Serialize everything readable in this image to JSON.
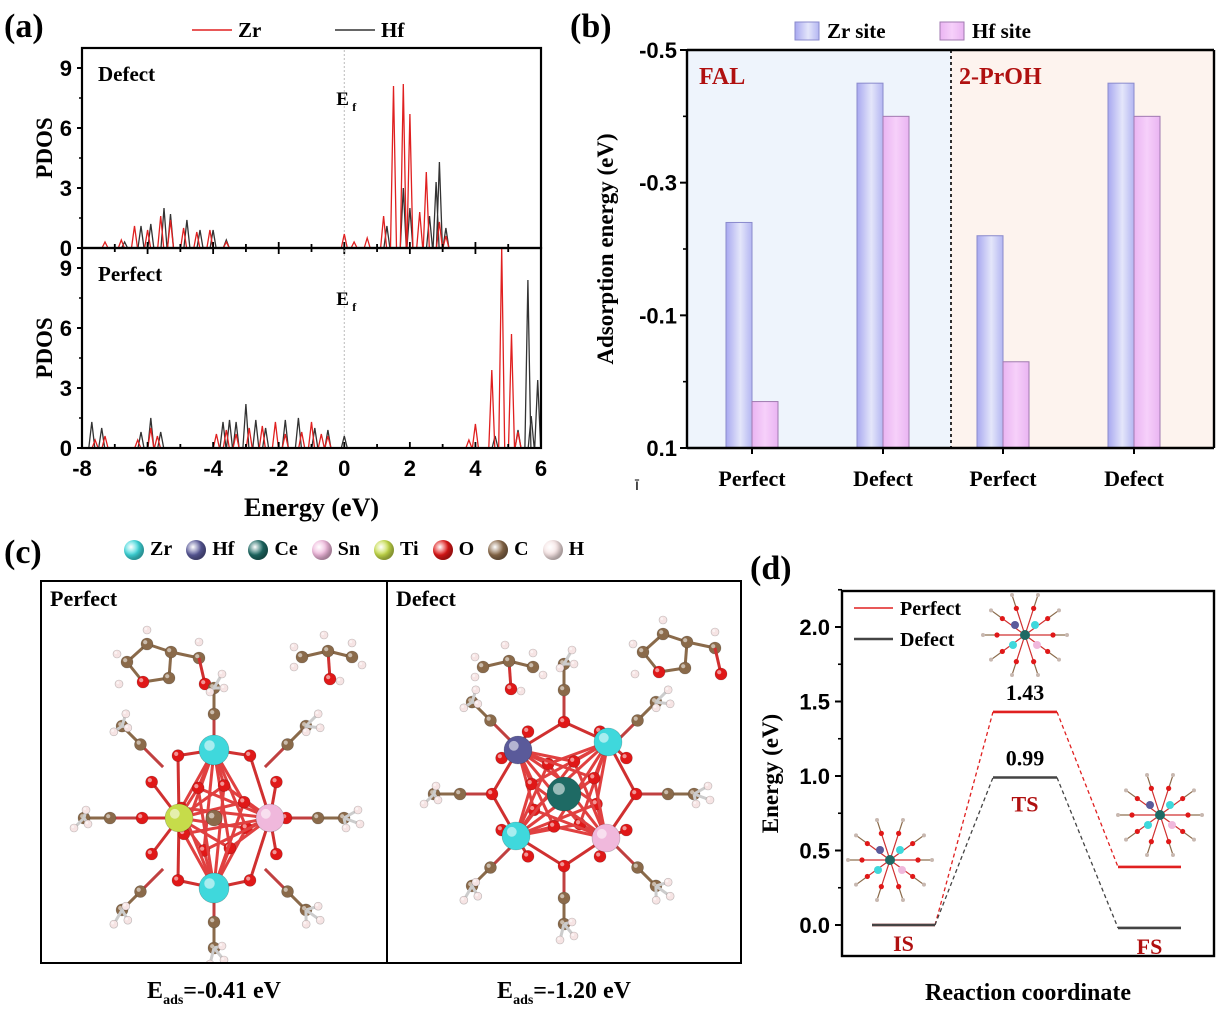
{
  "panels": {
    "a": {
      "label": "(a)"
    },
    "b": {
      "label": "(b)"
    },
    "c": {
      "label": "(c)"
    },
    "d": {
      "label": "(d)"
    }
  },
  "colors": {
    "zr_line": "#e02020",
    "hf_line": "#333333",
    "zr_site_bar": "#c8c8f8",
    "hf_site_bar": "#f2c0f6",
    "fal_bg": "#eef4fc",
    "proh_bg": "#fdf3ee",
    "group_label": "#b01010",
    "perfect_line": "#e02020",
    "defect_line": "#444444"
  },
  "structures": {
    "legend": [
      {
        "symbol": "Zr",
        "color": "#3fd8dc"
      },
      {
        "symbol": "Hf",
        "color": "#5a5a9a"
      },
      {
        "symbol": "Ce",
        "color": "#1e6a64"
      },
      {
        "symbol": "Sn",
        "color": "#f0b8dc"
      },
      {
        "symbol": "Ti",
        "color": "#c6dc4a"
      },
      {
        "symbol": "O",
        "color": "#e01818"
      },
      {
        "symbol": "C",
        "color": "#8a6a4a"
      },
      {
        "symbol": "H",
        "color": "#f6e4e4"
      }
    ],
    "perfect": {
      "title": "Perfect",
      "caption_main": "E",
      "caption_sub": "ads",
      "caption_value": "=-0.41 eV"
    },
    "defect": {
      "title": "Defect",
      "caption_main": "E",
      "caption_sub": "ads",
      "caption_value": "=-1.20 eV"
    }
  },
  "chart_data": [
    {
      "id": "a",
      "type": "line",
      "title": "",
      "xlabel": "Energy (eV)",
      "ylabel": "PDOS",
      "xlim": [
        -8,
        6
      ],
      "x_ticks": [
        "-8",
        "-6",
        "-4",
        "-2",
        "0",
        "2",
        "4",
        "6"
      ],
      "legend": [
        {
          "name": "Zr",
          "color": "#e02020"
        },
        {
          "name": "Hf",
          "color": "#333333"
        }
      ],
      "legend_position": "top",
      "fermi_label": "E",
      "fermi_sub": "f",
      "fermi_x": 0,
      "subplots": [
        {
          "name": "Defect",
          "ylim": [
            0,
            10
          ],
          "y_ticks": [
            "0",
            "3",
            "6",
            "9"
          ],
          "series": [
            {
              "name": "Zr",
              "peaks": [
                [
                  -7.3,
                  0.3
                ],
                [
                  -6.8,
                  0.4
                ],
                [
                  -6.4,
                  1.1
                ],
                [
                  -6.0,
                  0.9
                ],
                [
                  -5.6,
                  1.6
                ],
                [
                  -5.3,
                  1.4
                ],
                [
                  -4.9,
                  1.0
                ],
                [
                  -4.5,
                  0.8
                ],
                [
                  -4.1,
                  0.9
                ],
                [
                  -3.6,
                  0.3
                ],
                [
                  0.0,
                  0.7
                ],
                [
                  0.3,
                  0.3
                ],
                [
                  0.7,
                  0.5
                ],
                [
                  1.2,
                  1.6
                ],
                [
                  1.5,
                  8.1
                ],
                [
                  1.8,
                  8.2
                ],
                [
                  2.0,
                  6.7
                ],
                [
                  2.3,
                  1.8
                ],
                [
                  2.5,
                  3.8
                ],
                [
                  2.9,
                  1.3
                ],
                [
                  3.1,
                  0.6
                ]
              ]
            },
            {
              "name": "Hf",
              "peaks": [
                [
                  -6.7,
                  0.3
                ],
                [
                  -6.2,
                  1.1
                ],
                [
                  -5.9,
                  1.2
                ],
                [
                  -5.5,
                  2.0
                ],
                [
                  -5.3,
                  1.7
                ],
                [
                  -4.8,
                  1.4
                ],
                [
                  -4.4,
                  0.9
                ],
                [
                  -4.0,
                  0.9
                ],
                [
                  -3.6,
                  0.4
                ],
                [
                  1.3,
                  1.1
                ],
                [
                  1.8,
                  3.0
                ],
                [
                  2.0,
                  2.0
                ],
                [
                  2.6,
                  1.6
                ],
                [
                  2.8,
                  3.3
                ],
                [
                  2.9,
                  4.3
                ],
                [
                  3.1,
                  1.0
                ]
              ]
            }
          ]
        },
        {
          "name": "Perfect",
          "ylim": [
            0,
            10
          ],
          "y_ticks": [
            "0",
            "3",
            "6",
            "9"
          ],
          "series": [
            {
              "name": "Zr",
              "peaks": [
                [
                  -7.6,
                  0.4
                ],
                [
                  -7.3,
                  0.6
                ],
                [
                  -6.3,
                  0.4
                ],
                [
                  -5.9,
                  1.0
                ],
                [
                  -5.7,
                  0.6
                ],
                [
                  -3.9,
                  0.7
                ],
                [
                  -3.6,
                  0.9
                ],
                [
                  -3.3,
                  0.7
                ],
                [
                  -2.9,
                  1.0
                ],
                [
                  -2.5,
                  1.1
                ],
                [
                  -2.1,
                  1.3
                ],
                [
                  -1.8,
                  0.7
                ],
                [
                  -1.3,
                  0.8
                ],
                [
                  -1.0,
                  1.3
                ],
                [
                  -0.7,
                  0.7
                ],
                [
                  -0.5,
                  0.6
                ],
                [
                  3.8,
                  0.4
                ],
                [
                  4.0,
                  1.2
                ],
                [
                  4.5,
                  3.9
                ],
                [
                  4.8,
                  10.0
                ],
                [
                  5.1,
                  5.7
                ],
                [
                  5.3,
                  0.8
                ]
              ]
            },
            {
              "name": "Hf",
              "peaks": [
                [
                  -7.7,
                  1.3
                ],
                [
                  -7.4,
                  1.0
                ],
                [
                  -6.2,
                  0.8
                ],
                [
                  -5.9,
                  1.5
                ],
                [
                  -5.6,
                  0.8
                ],
                [
                  -3.7,
                  1.3
                ],
                [
                  -3.5,
                  1.4
                ],
                [
                  -3.3,
                  1.3
                ],
                [
                  -3.0,
                  2.2
                ],
                [
                  -2.7,
                  1.4
                ],
                [
                  -2.4,
                  1.0
                ],
                [
                  -1.8,
                  1.4
                ],
                [
                  -1.4,
                  1.5
                ],
                [
                  -0.9,
                  1.0
                ],
                [
                  -0.5,
                  0.9
                ],
                [
                  0.0,
                  0.6
                ],
                [
                  4.6,
                  0.6
                ],
                [
                  5.3,
                  0.9
                ],
                [
                  5.6,
                  8.4
                ],
                [
                  5.7,
                  1.6
                ],
                [
                  5.9,
                  3.4
                ]
              ]
            }
          ]
        }
      ]
    },
    {
      "id": "b",
      "type": "bar",
      "title": "",
      "xlabel": "",
      "ylabel": "Adsorption energy (eV)",
      "ylim": [
        0.1,
        -0.5
      ],
      "y_ticks": [
        "-0.5",
        "-0.3",
        "-0.1",
        "0.1"
      ],
      "y_tick_values": [
        -0.5,
        -0.3,
        -0.1,
        0.1
      ],
      "stray_label": "ī",
      "legend": [
        {
          "name": "Zr site",
          "color": "#c8c8f8"
        },
        {
          "name": "Hf site",
          "color": "#f2c0f6"
        }
      ],
      "legend_position": "top",
      "groups": [
        {
          "name": "FAL",
          "categories": [
            "Perfect",
            "Defect"
          ]
        },
        {
          "name": "2-PrOH",
          "categories": [
            "Perfect",
            "Defect"
          ]
        }
      ],
      "categories": [
        "Perfect",
        "Defect",
        "Perfect",
        "Defect"
      ],
      "series": [
        {
          "name": "Zr site",
          "values": [
            -0.24,
            -0.45,
            -0.22,
            -0.45
          ]
        },
        {
          "name": "Hf site",
          "values": [
            0.03,
            -0.4,
            -0.03,
            -0.4
          ]
        }
      ]
    },
    {
      "id": "d",
      "type": "line",
      "title": "",
      "xlabel": "Reaction coordinate",
      "ylabel": "Energy (eV)",
      "ylim": [
        -0.25,
        2.25
      ],
      "y_ticks": [
        "0.0",
        "0.5",
        "1.0",
        "1.5",
        "2.0"
      ],
      "y_tick_values": [
        0,
        0.5,
        1.0,
        1.5,
        2.0
      ],
      "legend": [
        {
          "name": "Perfect",
          "color": "#e02020"
        },
        {
          "name": "Defect",
          "color": "#444444"
        }
      ],
      "legend_position": "top-left",
      "states": [
        "IS",
        "TS",
        "FS"
      ],
      "series": [
        {
          "name": "Perfect",
          "values": [
            0.0,
            1.43,
            0.39
          ]
        },
        {
          "name": "Defect",
          "values": [
            0.0,
            0.99,
            -0.02
          ]
        }
      ],
      "annotations": [
        {
          "text": "1.43",
          "state": "TS",
          "series": "Perfect"
        },
        {
          "text": "0.99",
          "state": "TS",
          "series": "Defect"
        }
      ]
    }
  ]
}
